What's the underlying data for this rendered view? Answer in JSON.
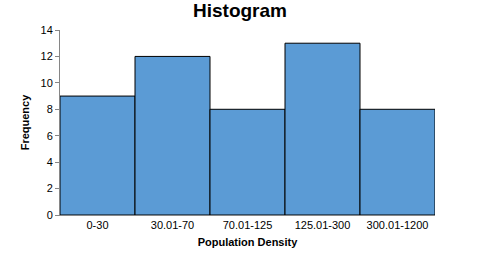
{
  "chart_data": {
    "type": "bar",
    "title": "Histogram",
    "x_label": "Population Density",
    "y_label": "Frequency",
    "categories": [
      "0-30",
      "30.01-70",
      "70.01-125",
      "125.01-300",
      "300.01-1200"
    ],
    "values": [
      9,
      12,
      8,
      13,
      8
    ],
    "color": "#5b9bd5",
    "ylim": [
      0,
      14
    ],
    "yticks": [
      0,
      2,
      4,
      6,
      8,
      10,
      12,
      14
    ],
    "grid": false
  }
}
